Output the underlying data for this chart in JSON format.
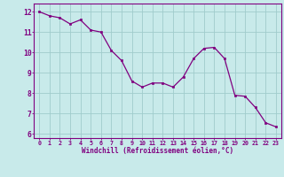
{
  "x": [
    0,
    1,
    2,
    3,
    4,
    5,
    6,
    7,
    8,
    9,
    10,
    11,
    12,
    13,
    14,
    15,
    16,
    17,
    18,
    19,
    20,
    21,
    22,
    23
  ],
  "y": [
    12.0,
    11.8,
    11.7,
    11.4,
    11.6,
    11.1,
    11.0,
    10.1,
    9.6,
    8.6,
    8.3,
    8.5,
    8.5,
    8.3,
    8.8,
    9.7,
    10.2,
    10.25,
    9.7,
    7.9,
    7.85,
    7.3,
    6.55,
    6.35
  ],
  "line_color": "#800080",
  "marker_color": "#800080",
  "bg_color": "#c8eaea",
  "grid_color": "#a0cccc",
  "axis_color": "#800080",
  "xlabel": "Windchill (Refroidissement éolien,°C)",
  "xlim": [
    -0.5,
    23.5
  ],
  "ylim": [
    5.8,
    12.4
  ],
  "yticks": [
    6,
    7,
    8,
    9,
    10,
    11,
    12
  ],
  "xticks": [
    0,
    1,
    2,
    3,
    4,
    5,
    6,
    7,
    8,
    9,
    10,
    11,
    12,
    13,
    14,
    15,
    16,
    17,
    18,
    19,
    20,
    21,
    22,
    23
  ],
  "figsize": [
    3.2,
    2.0
  ],
  "dpi": 100
}
